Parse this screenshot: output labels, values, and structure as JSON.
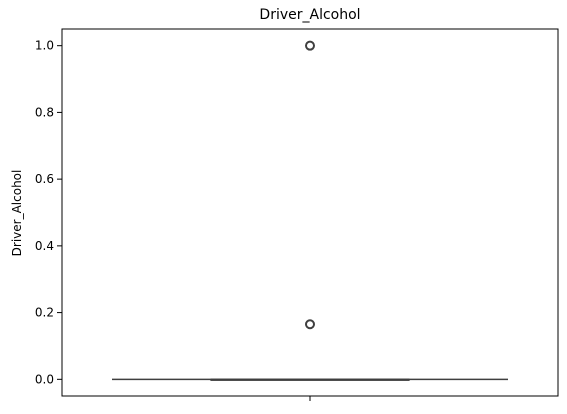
{
  "chart_data": {
    "type": "box",
    "title": "Driver_Alcohol",
    "xlabel": "",
    "ylabel": "Driver_Alcohol",
    "ylim": [
      -0.05,
      1.05
    ],
    "yticks": [
      0.0,
      0.2,
      0.4,
      0.6,
      0.8,
      1.0
    ],
    "ytick_labels": [
      "0.0",
      "0.2",
      "0.4",
      "0.6",
      "0.8",
      "1.0"
    ],
    "grid": false,
    "box": {
      "min": 0.0,
      "q1": 0.0,
      "median": 0.0,
      "q3": 0.0,
      "max": 0.0,
      "outliers": [
        0.165,
        1.0
      ]
    },
    "colors": {
      "box_line": "#3f3f3f",
      "axis": "#000000"
    }
  }
}
